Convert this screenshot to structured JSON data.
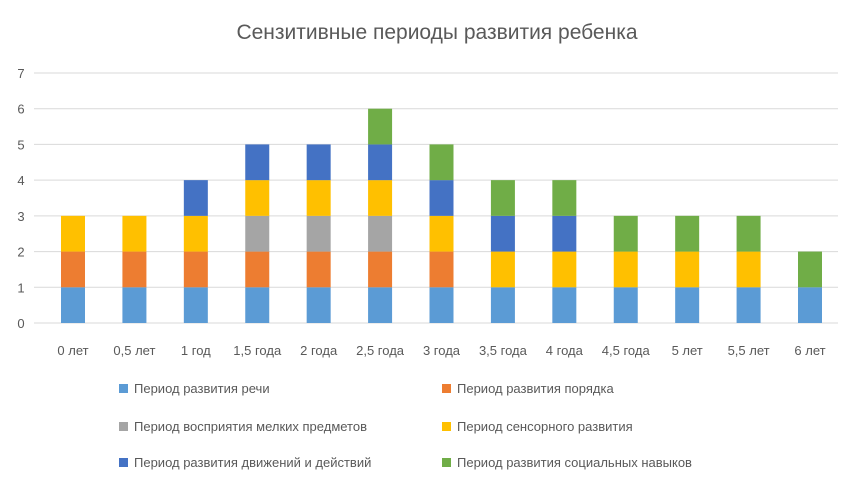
{
  "chart_data": {
    "type": "bar",
    "stacked": true,
    "title": "Сензитивные периоды развития ребенка",
    "xlabel": "",
    "ylabel": "",
    "ylim": [
      0,
      7
    ],
    "yticks": [
      0,
      1,
      2,
      3,
      4,
      5,
      6,
      7
    ],
    "grid": true,
    "legend_position": "bottom",
    "categories": [
      "0 лет",
      "0,5 лет",
      "1 год",
      "1,5 года",
      "2 года",
      "2,5 года",
      "3 года",
      "3,5 года",
      "4 года",
      "4,5 года",
      "5 лет",
      "5,5 лет",
      "6 лет"
    ],
    "series": [
      {
        "name": "Период развития речи",
        "color": "#5b9bd5",
        "values": [
          1,
          1,
          1,
          1,
          1,
          1,
          1,
          1,
          1,
          1,
          1,
          1,
          1
        ]
      },
      {
        "name": "Период развития порядка",
        "color": "#ed7d31",
        "values": [
          1,
          1,
          1,
          1,
          1,
          1,
          1,
          0,
          0,
          0,
          0,
          0,
          0
        ]
      },
      {
        "name": "Период восприятия мелких предметов",
        "color": "#a5a5a5",
        "values": [
          0,
          0,
          0,
          1,
          1,
          1,
          0,
          0,
          0,
          0,
          0,
          0,
          0
        ]
      },
      {
        "name": "Период сенсорного развития",
        "color": "#ffc000",
        "values": [
          1,
          1,
          1,
          1,
          1,
          1,
          1,
          1,
          1,
          1,
          1,
          1,
          0
        ]
      },
      {
        "name": "Период развития движений и действий",
        "color": "#4472c4",
        "values": [
          0,
          0,
          1,
          1,
          1,
          1,
          1,
          1,
          1,
          0,
          0,
          0,
          0
        ]
      },
      {
        "name": "Период развития социальных навыков",
        "color": "#70ad47",
        "values": [
          0,
          0,
          0,
          0,
          0,
          1,
          1,
          1,
          1,
          1,
          1,
          1,
          1
        ]
      }
    ]
  }
}
